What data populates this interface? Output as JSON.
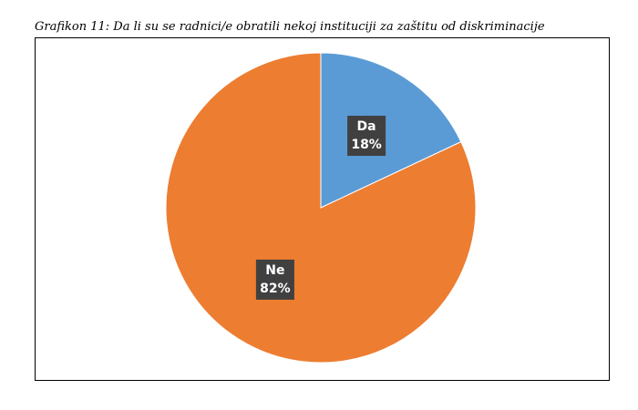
{
  "chart_data": {
    "type": "pie",
    "title": "Grafikon 11: Da li su se radnici/e obratili nekoj instituciji za zaštitu od diskriminacije",
    "categories": [
      "Da",
      "Ne"
    ],
    "values": [
      18,
      82
    ],
    "value_labels": [
      "18%",
      "82%"
    ],
    "colors": [
      "#5b9bd5",
      "#ed7d31"
    ]
  }
}
